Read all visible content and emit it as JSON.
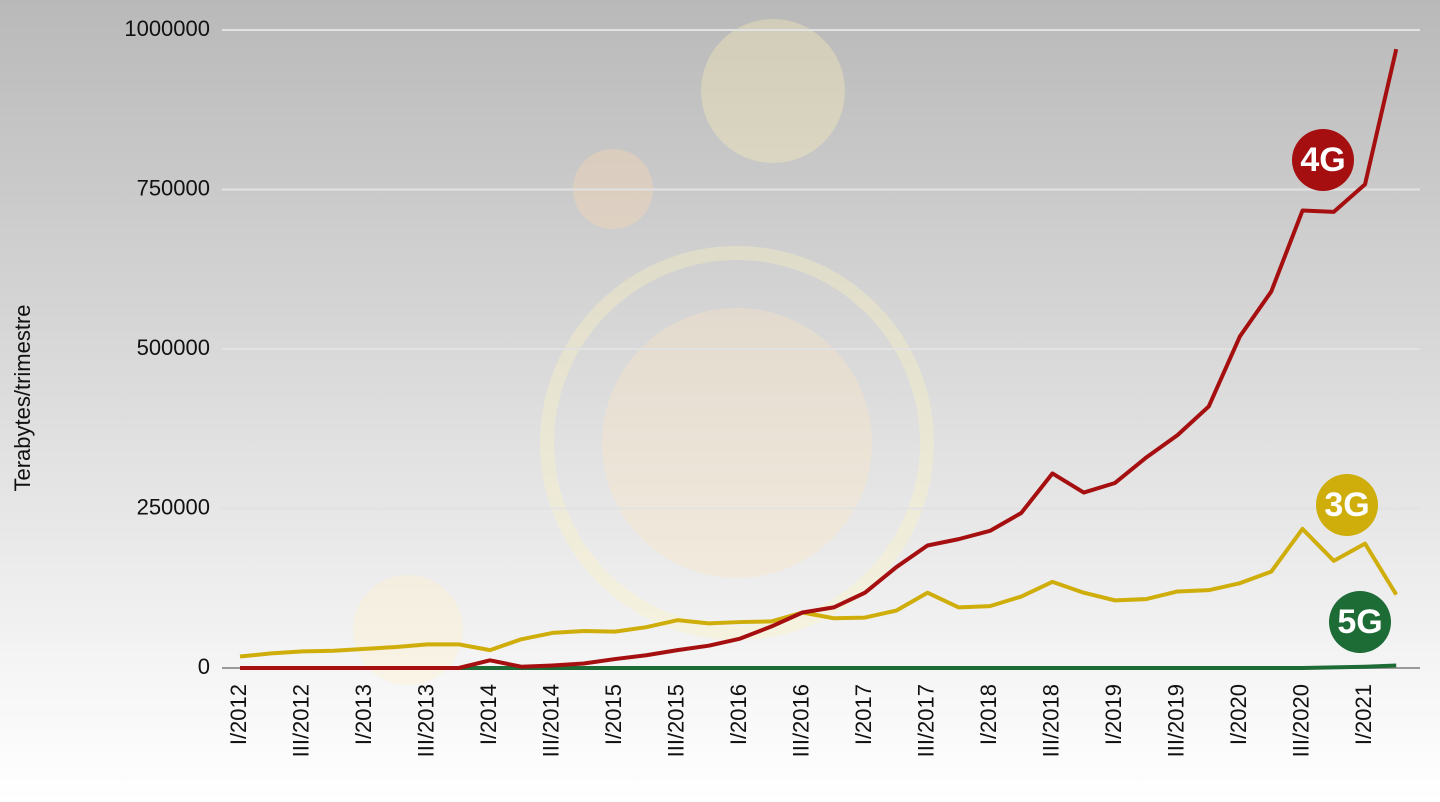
{
  "chart_data": {
    "type": "line",
    "y_label": "Terabytes/trimestre",
    "categories": [
      "I/2012",
      null,
      "III/2012",
      null,
      "I/2013",
      null,
      "III/2013",
      null,
      "I/2014",
      null,
      "III/2014",
      null,
      "I/2015",
      null,
      "III/2015",
      null,
      "I/2016",
      null,
      "III/2016",
      null,
      "I/2017",
      null,
      "III/2017",
      null,
      "I/2018",
      null,
      "III/2018",
      null,
      "I/2019",
      null,
      "III/2019",
      null,
      "I/2020",
      null,
      "III/2020",
      null,
      "I/2021",
      null
    ],
    "series": [
      {
        "name": "4G",
        "color": "#a50f10",
        "values": [
          0,
          0,
          0,
          0,
          0,
          0,
          0,
          0,
          12000,
          2000,
          4000,
          7000,
          14000,
          20000,
          28000,
          35000,
          46000,
          65000,
          87000,
          95000,
          118000,
          158000,
          192000,
          202000,
          215000,
          243000,
          305000,
          275000,
          290000,
          330000,
          365000,
          410000,
          520000,
          590000,
          717000,
          715000,
          758000,
          970000
        ]
      },
      {
        "name": "3G",
        "color": "#cfae0b",
        "values": [
          18000,
          23000,
          26000,
          27000,
          30000,
          33000,
          37000,
          37000,
          28000,
          45000,
          55000,
          58000,
          57000,
          64000,
          75000,
          70000,
          72000,
          73000,
          87000,
          78000,
          79000,
          90000,
          118000,
          95000,
          97000,
          112000,
          135000,
          118000,
          106000,
          108000,
          120000,
          122000,
          133000,
          151000,
          218000,
          168000,
          195000,
          115000
        ]
      },
      {
        "name": "5G",
        "color": "#1d6b35",
        "values": [
          0,
          0,
          0,
          0,
          0,
          0,
          0,
          0,
          0,
          0,
          0,
          0,
          0,
          0,
          0,
          0,
          0,
          0,
          0,
          0,
          0,
          0,
          0,
          0,
          0,
          0,
          0,
          0,
          0,
          0,
          0,
          0,
          0,
          0,
          0,
          1000,
          2000,
          4000
        ]
      }
    ],
    "ylim": [
      0,
      1000000
    ],
    "yticks": [
      0,
      250000,
      500000,
      750000,
      1000000
    ],
    "grid": true
  }
}
